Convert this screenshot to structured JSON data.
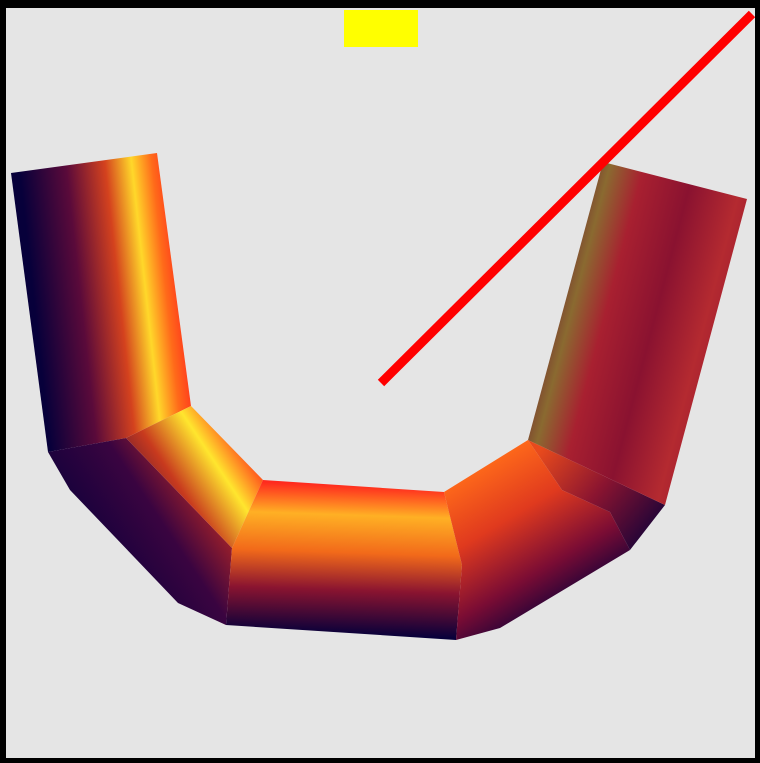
{
  "scene": {
    "background_color": "#e5e5e5",
    "frame_color": "#000000",
    "marker_color": "#ffff00",
    "line_color": "#ff0000",
    "tube_colormap": [
      "#07003a",
      "#5a0a3a",
      "#a0182c",
      "#e8381c",
      "#ff8a1a",
      "#ffd21e",
      "#ffff40"
    ]
  }
}
